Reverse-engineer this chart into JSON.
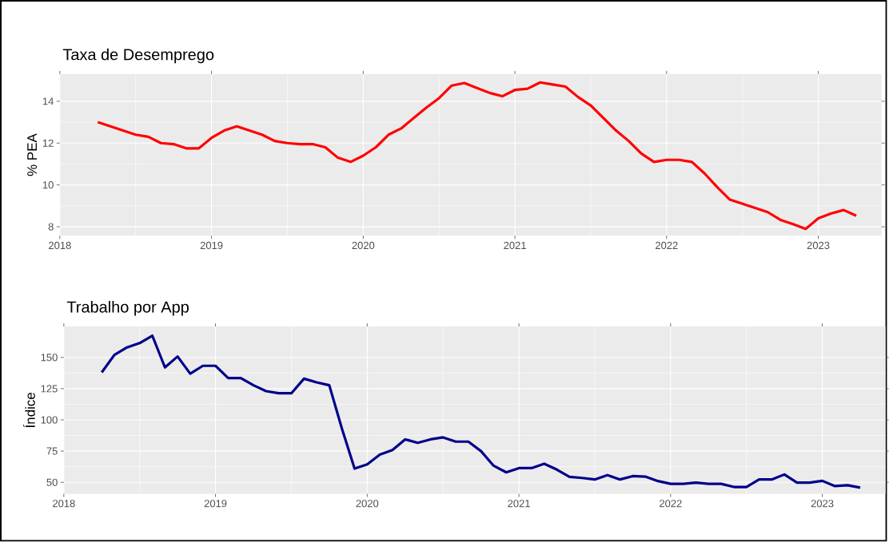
{
  "chart_data": [
    {
      "type": "line",
      "title": "Taxa de Desemprego",
      "ylabel": "% PEA",
      "x": [
        "2018-04",
        "2018-05",
        "2018-06",
        "2018-07",
        "2018-08",
        "2018-09",
        "2018-10",
        "2018-11",
        "2018-12",
        "2019-01",
        "2019-02",
        "2019-03",
        "2019-04",
        "2019-05",
        "2019-06",
        "2019-07",
        "2019-08",
        "2019-09",
        "2019-10",
        "2019-11",
        "2019-12",
        "2020-01",
        "2020-02",
        "2020-03",
        "2020-04",
        "2020-05",
        "2020-06",
        "2020-07",
        "2020-08",
        "2020-09",
        "2020-10",
        "2020-11",
        "2020-12",
        "2021-01",
        "2021-02",
        "2021-03",
        "2021-04",
        "2021-05",
        "2021-06",
        "2021-07",
        "2021-08",
        "2021-09",
        "2021-10",
        "2021-11",
        "2021-12",
        "2022-01",
        "2022-02",
        "2022-03",
        "2022-04",
        "2022-05",
        "2022-06",
        "2022-07",
        "2022-08",
        "2022-09",
        "2022-10",
        "2022-11",
        "2022-12",
        "2023-01",
        "2023-02",
        "2023-03",
        "2023-04"
      ],
      "series": [
        {
          "color": "#ff0000",
          "values": [
            13.0,
            12.8,
            12.6,
            12.4,
            12.3,
            12.0,
            11.95,
            11.75,
            11.75,
            12.25,
            12.6,
            12.8,
            12.6,
            12.4,
            12.1,
            12.0,
            11.95,
            11.95,
            11.8,
            11.3,
            11.1,
            11.4,
            11.8,
            12.4,
            12.7,
            13.2,
            13.7,
            14.15,
            14.75,
            14.87,
            14.63,
            14.4,
            14.24,
            14.54,
            14.6,
            14.9,
            14.8,
            14.7,
            14.2,
            13.8,
            13.2,
            12.6,
            12.1,
            11.5,
            11.1,
            11.2,
            11.2,
            11.1,
            10.55,
            9.9,
            9.3,
            9.1,
            8.9,
            8.7,
            8.33,
            8.13,
            7.9,
            8.4,
            8.63,
            8.8,
            8.53
          ]
        }
      ],
      "xlim": [
        "2018-01",
        "2023-06"
      ],
      "ylim": [
        7.57,
        15.3
      ],
      "xticks": [
        "2018",
        "2019",
        "2020",
        "2021",
        "2022",
        "2023"
      ],
      "yticks": [
        8,
        10,
        12,
        14
      ],
      "grid": true
    },
    {
      "type": "line",
      "title": "Trabalho por App",
      "ylabel": "Índice",
      "x": [
        "2018-04",
        "2018-05",
        "2018-06",
        "2018-07",
        "2018-08",
        "2018-09",
        "2018-10",
        "2018-11",
        "2018-12",
        "2019-01",
        "2019-02",
        "2019-03",
        "2019-04",
        "2019-05",
        "2019-06",
        "2019-07",
        "2019-08",
        "2019-09",
        "2019-10",
        "2019-11",
        "2019-12",
        "2020-01",
        "2020-02",
        "2020-03",
        "2020-04",
        "2020-05",
        "2020-06",
        "2020-07",
        "2020-08",
        "2020-09",
        "2020-10",
        "2020-11",
        "2020-12",
        "2021-01",
        "2021-02",
        "2021-03",
        "2021-04",
        "2021-05",
        "2021-06",
        "2021-07",
        "2021-08",
        "2021-09",
        "2021-10",
        "2021-11",
        "2021-12",
        "2022-01",
        "2022-02",
        "2022-03",
        "2022-04",
        "2022-05",
        "2022-06",
        "2022-07",
        "2022-08",
        "2022-09",
        "2022-10",
        "2022-11",
        "2022-12",
        "2023-01",
        "2023-02",
        "2023-03",
        "2023-04"
      ],
      "series": [
        {
          "color": "#00008b",
          "values": [
            138,
            152,
            158,
            161.5,
            167.4,
            142,
            150.7,
            137,
            143.3,
            143.3,
            133.5,
            133.5,
            127.7,
            123,
            121.3,
            121.3,
            133,
            130,
            127.7,
            93,
            61,
            64.4,
            72.2,
            75.9,
            84.4,
            81.6,
            84.4,
            86,
            82.6,
            82.6,
            75,
            63.3,
            58,
            61.4,
            61.4,
            64.9,
            60.2,
            54.4,
            53.5,
            52.3,
            55.8,
            52.3,
            55,
            54.6,
            51,
            48.8,
            48.8,
            49.8,
            48.8,
            48.8,
            46.3,
            46.3,
            52.3,
            52.3,
            56.3,
            49.8,
            49.8,
            51.2,
            47,
            47.7,
            45.8
          ]
        }
      ],
      "xlim": [
        "2018-01",
        "2023-06"
      ],
      "ylim": [
        40.8,
        174.7
      ],
      "xticks": [
        "2018",
        "2019",
        "2020",
        "2021",
        "2022",
        "2023"
      ],
      "yticks": [
        50,
        75,
        100,
        125,
        150
      ],
      "grid": true
    }
  ]
}
